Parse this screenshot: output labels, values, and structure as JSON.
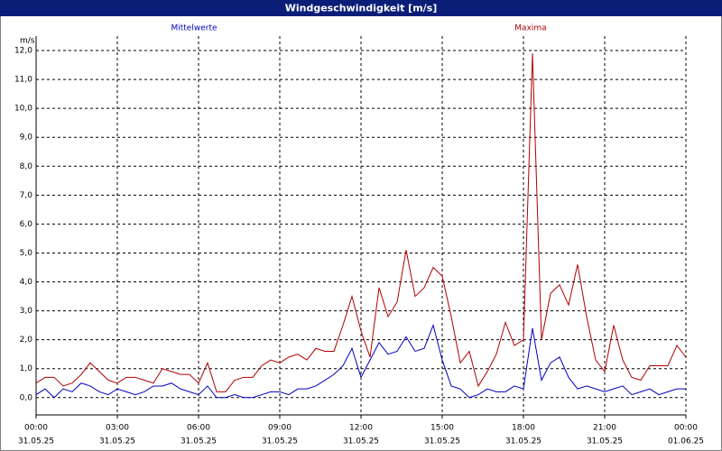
{
  "chart_data": {
    "type": "line",
    "title": "Windgeschwindigkeit [m/s]",
    "y_unit": "m/s",
    "x": [
      0,
      20,
      40,
      60,
      80,
      100,
      120,
      140,
      160,
      180,
      200,
      220,
      240,
      260,
      280,
      300,
      320,
      340,
      360,
      380,
      400,
      420,
      440,
      460,
      480,
      500,
      520,
      540,
      560,
      580,
      600,
      620,
      640,
      660,
      680,
      700,
      720,
      740,
      760,
      780,
      800,
      820,
      840,
      860,
      880,
      900,
      920,
      940,
      960,
      980,
      1000,
      1020,
      1040,
      1060,
      1080,
      1100,
      1120,
      1140,
      1160,
      1180,
      1200,
      1220,
      1240,
      1260,
      1280,
      1300,
      1320,
      1340,
      1360,
      1380,
      1400,
      1420,
      1440
    ],
    "series": [
      {
        "name": "Mittelwerte",
        "color": "#0000c0",
        "values": [
          0.1,
          0.3,
          0.0,
          0.3,
          0.2,
          0.5,
          0.4,
          0.2,
          0.1,
          0.3,
          0.2,
          0.1,
          0.2,
          0.4,
          0.4,
          0.5,
          0.3,
          0.2,
          0.1,
          0.4,
          0.0,
          0.0,
          0.1,
          0.0,
          0.0,
          0.1,
          0.2,
          0.2,
          0.1,
          0.3,
          0.3,
          0.4,
          0.6,
          0.8,
          1.1,
          1.7,
          0.7,
          1.3,
          1.9,
          1.5,
          1.6,
          2.1,
          1.6,
          1.7,
          2.5,
          1.3,
          0.4,
          0.3,
          0.0,
          0.1,
          0.3,
          0.2,
          0.2,
          0.4,
          0.3,
          2.4,
          0.6,
          1.2,
          1.4,
          0.7,
          0.3,
          0.4,
          0.3,
          0.2,
          0.3,
          0.4,
          0.1,
          0.2,
          0.3,
          0.1,
          0.2,
          0.3,
          0.3
        ]
      },
      {
        "name": "Maxima",
        "color": "#b00000",
        "values": [
          0.5,
          0.7,
          0.7,
          0.4,
          0.5,
          0.8,
          1.2,
          0.9,
          0.6,
          0.5,
          0.7,
          0.7,
          0.6,
          0.5,
          1.0,
          0.9,
          0.8,
          0.8,
          0.5,
          1.2,
          0.2,
          0.2,
          0.6,
          0.7,
          0.7,
          1.1,
          1.3,
          1.2,
          1.4,
          1.5,
          1.3,
          1.7,
          1.6,
          1.6,
          2.5,
          3.5,
          2.3,
          1.4,
          3.8,
          2.8,
          3.3,
          5.1,
          3.5,
          3.8,
          4.5,
          4.2,
          2.8,
          1.2,
          1.6,
          0.4,
          0.9,
          1.5,
          2.6,
          1.8,
          2.0,
          11.9,
          2.0,
          3.6,
          3.9,
          3.2,
          4.6,
          2.8,
          1.3,
          0.9,
          2.5,
          1.3,
          0.7,
          0.6,
          1.1,
          1.1,
          1.1,
          1.8,
          1.4
        ]
      }
    ],
    "xlim": [
      0,
      1440
    ],
    "xticks": [
      {
        "value": 0,
        "label": "00:00"
      },
      {
        "value": 180,
        "label": "03:00"
      },
      {
        "value": 360,
        "label": "06:00"
      },
      {
        "value": 540,
        "label": "09:00"
      },
      {
        "value": 720,
        "label": "12:00"
      },
      {
        "value": 900,
        "label": "15:00"
      },
      {
        "value": 1080,
        "label": "18:00"
      },
      {
        "value": 1260,
        "label": "21:00"
      },
      {
        "value": 1440,
        "label": "00:00"
      }
    ],
    "xtick_dates": [
      "31.05.25",
      "31.05.25",
      "31.05.25",
      "31.05.25",
      "31.05.25",
      "31.05.25",
      "31.05.25",
      "31.05.25",
      "01.06.25"
    ],
    "ylim": [
      -0.6,
      12.5
    ],
    "yticks": [
      {
        "value": 0,
        "label": "0,0"
      },
      {
        "value": 1,
        "label": "1,0"
      },
      {
        "value": 2,
        "label": "2,0"
      },
      {
        "value": 3,
        "label": "3,0"
      },
      {
        "value": 4,
        "label": "4,0"
      },
      {
        "value": 5,
        "label": "5,0"
      },
      {
        "value": 6,
        "label": "6,0"
      },
      {
        "value": 7,
        "label": "7,0"
      },
      {
        "value": 8,
        "label": "8,0"
      },
      {
        "value": 9,
        "label": "9,0"
      },
      {
        "value": 10,
        "label": "10,0"
      },
      {
        "value": 11,
        "label": "11,0"
      },
      {
        "value": 12,
        "label": "12,0"
      }
    ],
    "grid": true
  }
}
